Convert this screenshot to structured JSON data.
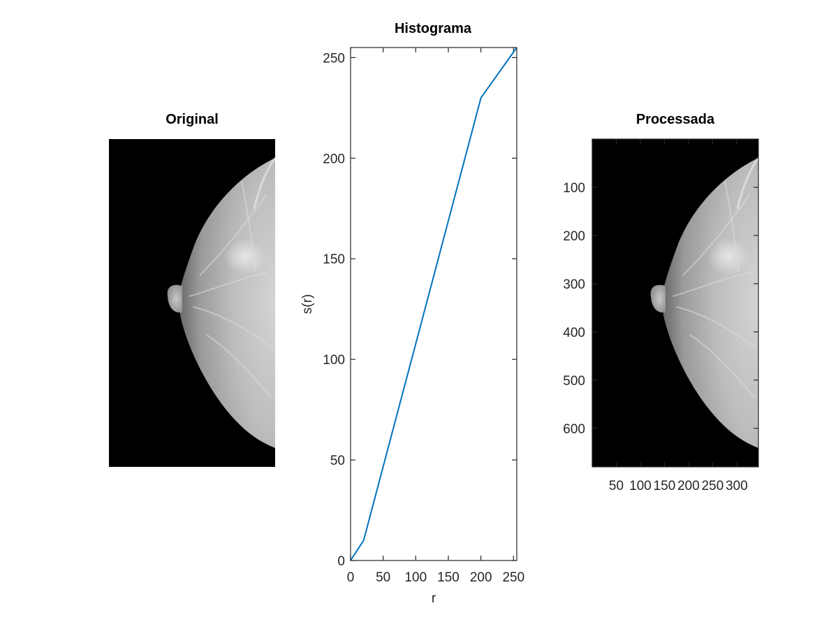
{
  "figure": {
    "original": {
      "title": "Original"
    },
    "processed": {
      "title": "Processada",
      "y_ticks": [
        "100",
        "200",
        "300",
        "400",
        "500",
        "600"
      ],
      "x_ticks": [
        "50",
        "100",
        "150",
        "200",
        "250",
        "300"
      ]
    }
  },
  "chart_data": {
    "type": "line",
    "title": "Histograma",
    "xlabel": "r",
    "ylabel": "s(r)",
    "xlim": [
      0,
      255
    ],
    "ylim": [
      0,
      255
    ],
    "x_ticks": [
      "0",
      "50",
      "100",
      "150",
      "200",
      "250"
    ],
    "y_ticks": [
      "0",
      "50",
      "100",
      "150",
      "200",
      "250"
    ],
    "grid": false,
    "series": [
      {
        "x": [
          0,
          20,
          200,
          255
        ],
        "y": [
          0,
          10,
          230,
          255
        ],
        "color": "#0072BD"
      }
    ]
  }
}
